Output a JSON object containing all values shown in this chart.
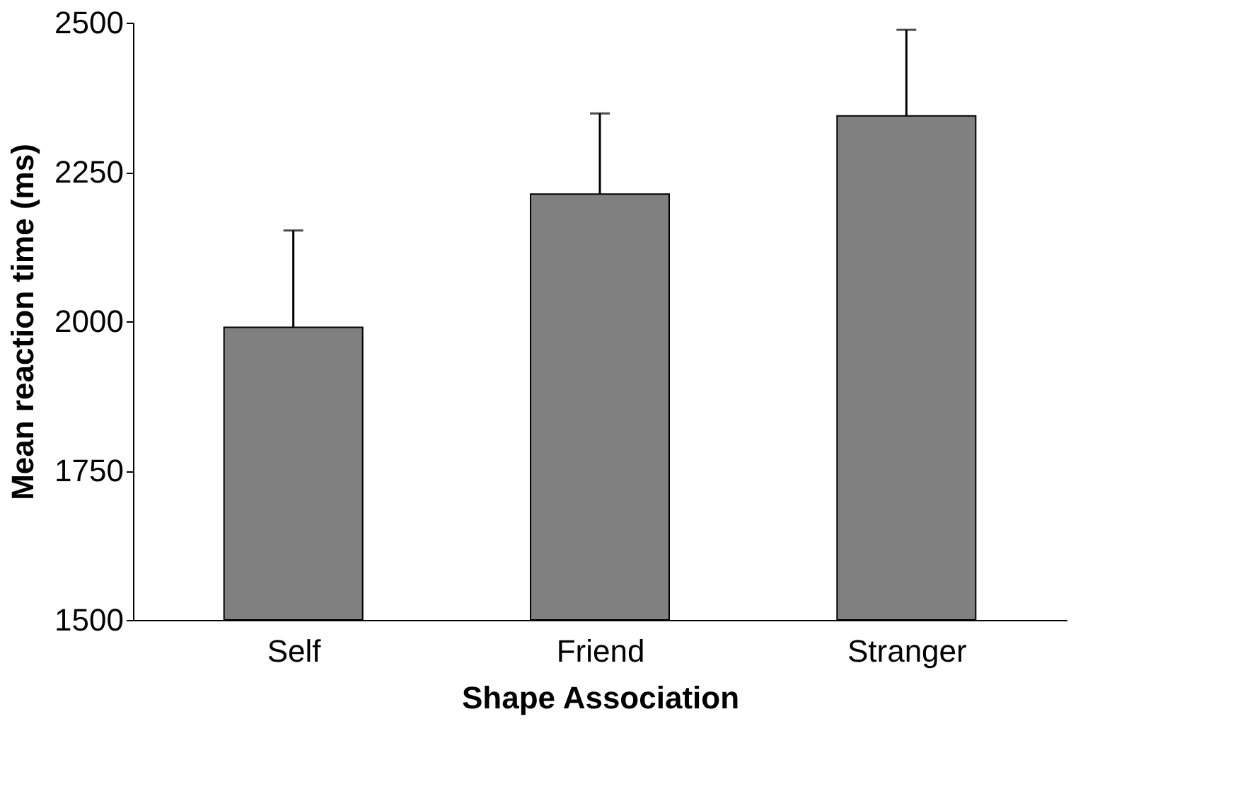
{
  "chart_data": {
    "type": "bar",
    "xlabel": "Shape Association",
    "ylabel": "Mean reaction time (ms)",
    "categories": [
      "Self",
      "Friend",
      "Stranger"
    ],
    "values": [
      1990,
      2213,
      2344
    ],
    "errors": [
      162,
      135,
      144
    ],
    "color": "#808080",
    "ylim": [
      1500,
      2500
    ],
    "yticks": [
      1500,
      1750,
      2000,
      2250,
      2500
    ],
    "grid": false
  }
}
